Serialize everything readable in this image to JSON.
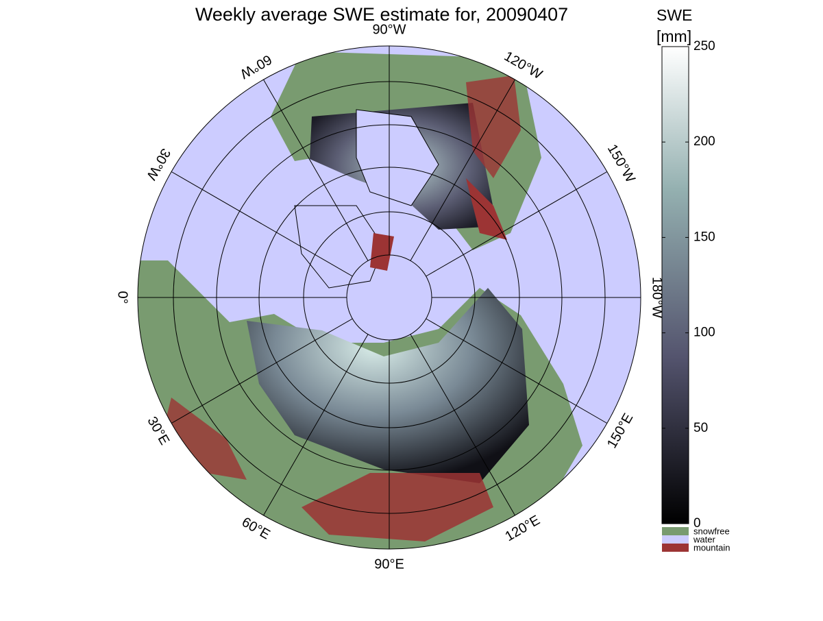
{
  "title": "Weekly average SWE estimate for, 20090407",
  "map": {
    "lon_labels": [
      "90°W",
      "120°W",
      "150°W",
      "180°W",
      "150°E",
      "120°E",
      "90°E",
      "60°E",
      "30°E",
      "0°",
      "30°W",
      "60°W"
    ]
  },
  "colorbar": {
    "label": [
      "SWE",
      "[mm]"
    ],
    "clim": [
      0,
      250
    ],
    "ticks": [
      0,
      50,
      100,
      150,
      200,
      250
    ]
  },
  "legend": [
    {
      "name": "snowfree",
      "color": "#799b70"
    },
    {
      "name": "water",
      "color": "#ccccff"
    },
    {
      "name": "mountain",
      "color": "#9c3434"
    }
  ]
}
